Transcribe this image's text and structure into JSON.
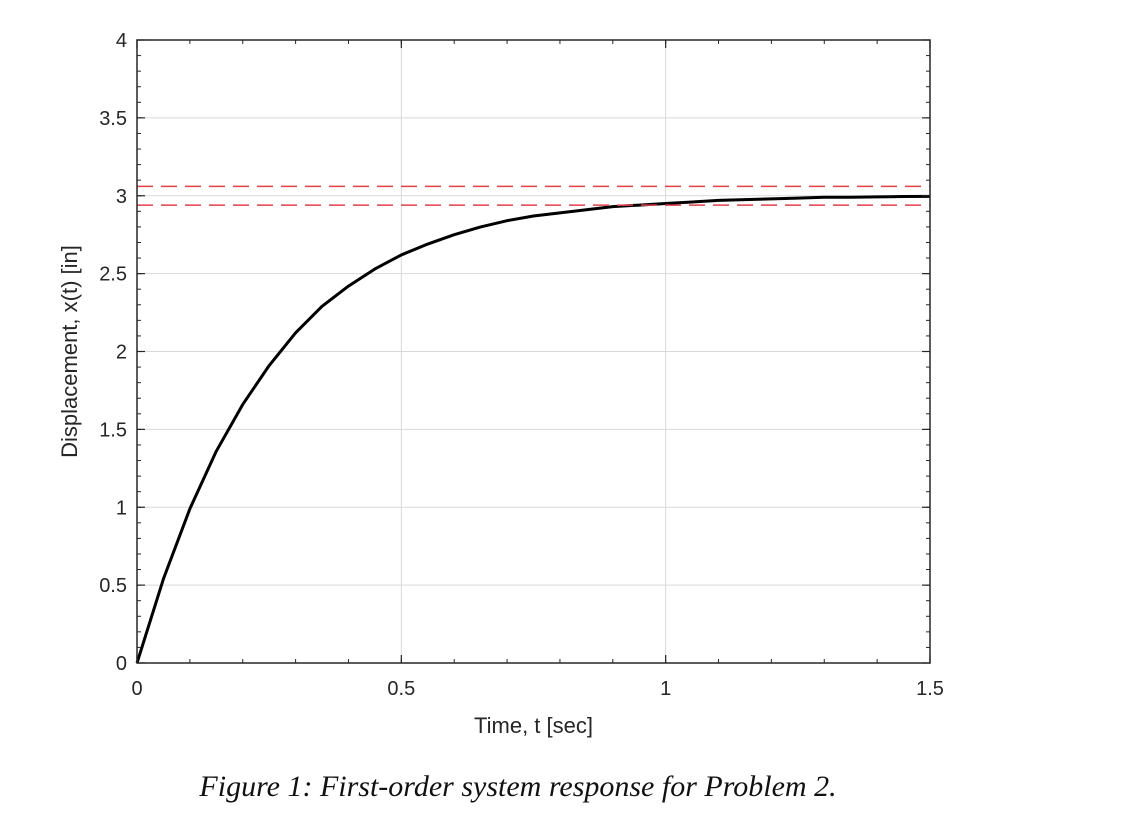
{
  "caption": "Figure 1: First-order system response for Problem 2.",
  "chart_data": {
    "type": "line",
    "title": "",
    "xlabel": "Time, t [sec]",
    "ylabel": "Displacement, x(t) [in]",
    "xlim": [
      0,
      1.5
    ],
    "ylim": [
      0,
      4
    ],
    "xticks": [
      0,
      0.5,
      1,
      1.5
    ],
    "xtick_labels": [
      "0",
      "0.5",
      "1",
      "1.5"
    ],
    "yticks": [
      0,
      0.5,
      1,
      1.5,
      2,
      2.5,
      3,
      3.5,
      4
    ],
    "ytick_labels": [
      "0",
      "0.5",
      "1",
      "1.5",
      "2",
      "2.5",
      "3",
      "3.5",
      "4"
    ],
    "grid": true,
    "legend": "none",
    "series": [
      {
        "style": "solid",
        "color": "#000000",
        "x": [
          0,
          0.05,
          0.1,
          0.15,
          0.2,
          0.25,
          0.3,
          0.35,
          0.4,
          0.45,
          0.5,
          0.55,
          0.6,
          0.65,
          0.7,
          0.75,
          0.8,
          0.85,
          0.9,
          0.95,
          1.0,
          1.05,
          1.1,
          1.15,
          1.2,
          1.25,
          1.3,
          1.35,
          1.4,
          1.45,
          1.5
        ],
        "y": [
          0,
          0.54,
          0.99,
          1.36,
          1.66,
          1.91,
          2.12,
          2.29,
          2.42,
          2.53,
          2.62,
          2.69,
          2.75,
          2.8,
          2.84,
          2.87,
          2.89,
          2.91,
          2.93,
          2.94,
          2.95,
          2.96,
          2.97,
          2.975,
          2.98,
          2.985,
          2.99,
          2.99,
          2.993,
          2.995,
          2.996
        ]
      },
      {
        "style": "dashed",
        "color": "#e0404a",
        "x": [
          0,
          1.5
        ],
        "y": [
          3.06,
          3.06
        ]
      },
      {
        "style": "dashed",
        "color": "#e0404a",
        "x": [
          0,
          1.5
        ],
        "y": [
          2.94,
          2.94
        ]
      }
    ]
  }
}
